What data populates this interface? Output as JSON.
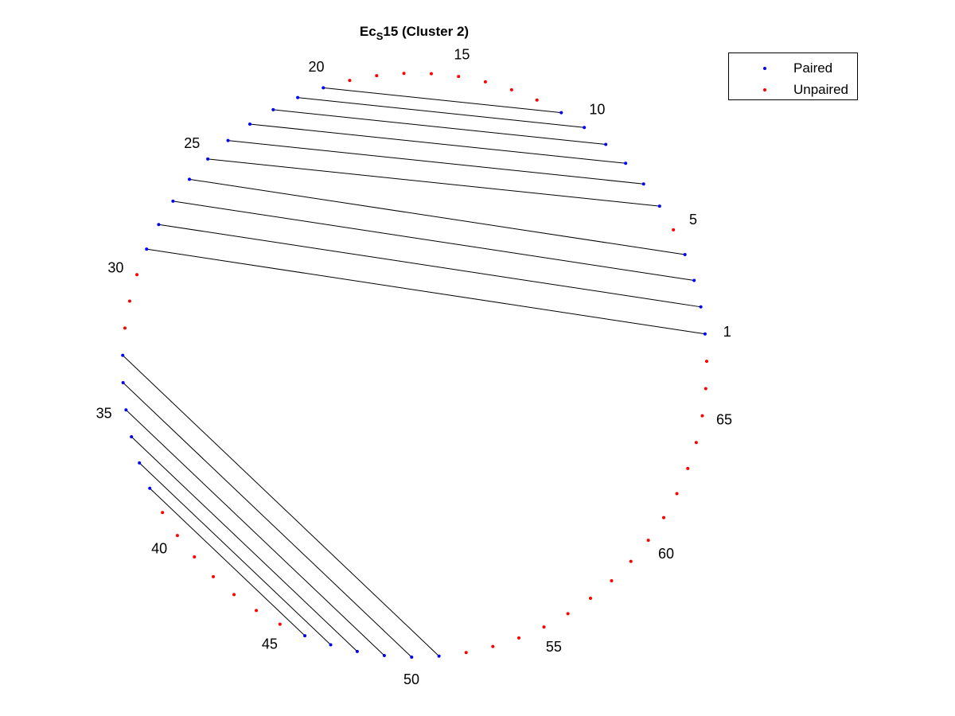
{
  "title": {
    "prefix": "Ec",
    "subscript": "S",
    "suffix": "15 (Cluster 2)"
  },
  "legend": [
    {
      "label": "Paired",
      "color": "#0000ff"
    },
    {
      "label": "Unpaired",
      "color": "#ff0000"
    }
  ],
  "chart_data": {
    "type": "arc-diagram",
    "sequence_length": 67,
    "position_labels": [
      "1",
      "5",
      "10",
      "15",
      "20",
      "25",
      "30",
      "35",
      "40",
      "45",
      "50",
      "55",
      "60",
      "65"
    ],
    "pairs": [
      [
        1,
        29
      ],
      [
        2,
        28
      ],
      [
        3,
        27
      ],
      [
        4,
        26
      ],
      [
        6,
        25
      ],
      [
        7,
        24
      ],
      [
        8,
        23
      ],
      [
        9,
        22
      ],
      [
        10,
        21
      ],
      [
        11,
        20
      ],
      [
        33,
        51
      ],
      [
        34,
        50
      ],
      [
        35,
        49
      ],
      [
        36,
        48
      ],
      [
        37,
        47
      ],
      [
        38,
        46
      ]
    ],
    "paired_color": "#0000ff",
    "unpaired_color": "#ff0000",
    "line_color": "#000000"
  }
}
